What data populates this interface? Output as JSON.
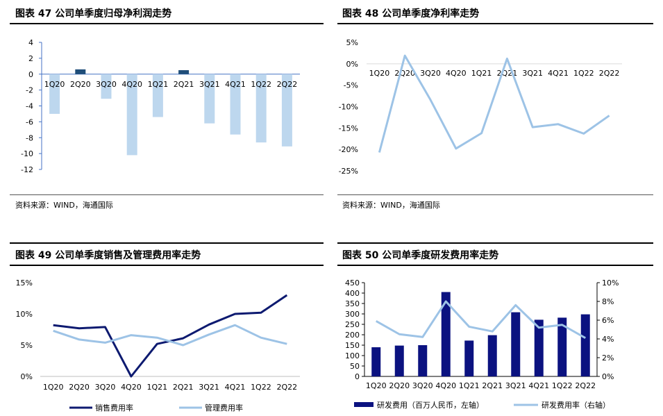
{
  "charts": [
    {
      "title": "图表 47 公司单季度归母净利润走势",
      "source": "资料来源：WIND，海通国际",
      "chart_data": {
        "type": "bar",
        "categories": [
          "1Q20",
          "2Q20",
          "3Q20",
          "4Q20",
          "1Q21",
          "2Q21",
          "3Q21",
          "4Q21",
          "1Q22",
          "2Q22"
        ],
        "values": [
          -5.0,
          0.6,
          -3.1,
          -10.2,
          -5.4,
          0.5,
          -6.2,
          -7.6,
          -8.6,
          -9.1
        ],
        "positive_color": "#1f4e79",
        "negative_color": "#bdd7ee",
        "ylim": [
          -12,
          4
        ],
        "yticks": [
          -12,
          -10,
          -8,
          -6,
          -4,
          -2,
          0,
          2,
          4
        ],
        "ytick_labels": [
          "-12",
          "-10",
          "-8",
          "-6",
          "-4",
          "-2",
          "0",
          "2",
          "4"
        ]
      }
    },
    {
      "title": "图表 48 公司单季度净利率走势",
      "source": "资料来源：WIND，海通国际",
      "chart_data": {
        "type": "line",
        "categories": [
          "1Q20",
          "2Q20",
          "3Q20",
          "4Q20",
          "1Q21",
          "2Q21",
          "3Q21",
          "4Q21",
          "1Q22",
          "2Q22"
        ],
        "values": [
          -20.7,
          1.9,
          -8.4,
          -19.8,
          -16.2,
          1.2,
          -14.8,
          -14.1,
          -16.3,
          -12.1
        ],
        "color": "#9dc3e6",
        "ylim": [
          -25,
          5
        ],
        "yticks": [
          -25,
          -20,
          -15,
          -10,
          -5,
          0,
          5
        ],
        "ytick_labels": [
          "-25%",
          "-20%",
          "-15%",
          "-10%",
          "-5%",
          "0%",
          "5%"
        ]
      }
    },
    {
      "title": "图表 49 公司单季度销售及管理费用率走势",
      "source": "",
      "chart_data": {
        "type": "line",
        "categories": [
          "1Q20",
          "2Q20",
          "3Q20",
          "4Q20",
          "1Q21",
          "2Q21",
          "3Q21",
          "4Q21",
          "1Q22",
          "2Q22"
        ],
        "series": [
          {
            "name": "销售费用率",
            "values": [
              8.2,
              7.7,
              7.9,
              0.0,
              5.2,
              6.1,
              8.3,
              10.0,
              10.2,
              13.0
            ],
            "color": "#0d1a70"
          },
          {
            "name": "管理费用率",
            "values": [
              7.3,
              5.9,
              5.4,
              6.6,
              6.2,
              5.0,
              6.7,
              8.2,
              6.2,
              5.2
            ],
            "color": "#9dc3e6"
          }
        ],
        "ylim": [
          0,
          15
        ],
        "yticks": [
          0,
          5,
          10,
          15
        ],
        "ytick_labels": [
          "0%",
          "5%",
          "10%",
          "15%"
        ]
      }
    },
    {
      "title": "图表 50 公司单季度研发费用率走势",
      "source": "",
      "chart_data": {
        "type": "bar+line",
        "categories": [
          "1Q20",
          "2Q20",
          "3Q20",
          "4Q20",
          "1Q21",
          "2Q21",
          "3Q21",
          "4Q21",
          "1Q22",
          "2Q22"
        ],
        "series": [
          {
            "name": "研发费用（百万人民币，左轴）",
            "kind": "bar",
            "axis": "left",
            "values": [
              140,
              148,
              150,
              405,
              172,
              198,
              308,
              272,
              282,
              298
            ],
            "color": "#0b1280"
          },
          {
            "name": "研发费用率（右轴）",
            "kind": "line",
            "axis": "right",
            "values": [
              5.9,
              4.5,
              4.2,
              8.0,
              5.3,
              4.8,
              7.6,
              5.2,
              5.5,
              4.1
            ],
            "color": "#9dc3e6"
          }
        ],
        "ylim_left": [
          0,
          450
        ],
        "yticks_left": [
          0,
          50,
          100,
          150,
          200,
          250,
          300,
          350,
          400,
          450
        ],
        "ytick_labels_left": [
          "0",
          "50",
          "100",
          "150",
          "200",
          "250",
          "300",
          "350",
          "400",
          "450"
        ],
        "ylim_right": [
          0,
          10
        ],
        "yticks_right": [
          0,
          2,
          4,
          6,
          8,
          10
        ],
        "ytick_labels_right": [
          "0%",
          "2%",
          "4%",
          "6%",
          "8%",
          "10%"
        ]
      }
    }
  ]
}
